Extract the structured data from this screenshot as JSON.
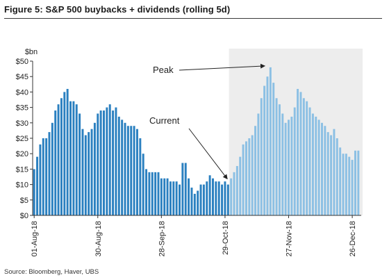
{
  "title": "Figure 5: S&P 500 buybacks + dividends (rolling 5d)",
  "source": "Source:  Bloomberg, Haver, UBS",
  "chart_data": {
    "type": "bar",
    "ylabel": "$bn",
    "ylim": [
      0,
      50
    ],
    "yticks": [
      "$0",
      "$5",
      "$10",
      "$15",
      "$20",
      "$25",
      "$30",
      "$35",
      "$40",
      "$45",
      "$50"
    ],
    "xtick_labels": [
      "01-Aug-18",
      "30-Aug-18",
      "28-Sep-18",
      "29-Oct-18",
      "27-Nov-18",
      "26-Dec-18"
    ],
    "xtick_index": [
      0,
      21,
      42,
      63,
      84,
      105
    ],
    "grid": false,
    "colors": {
      "actual": "#2b80c0",
      "projected": "#8cc0e4",
      "shade": "#ededed",
      "axis": "#333333"
    },
    "projection_start_index": 65,
    "series": [
      {
        "values": [
          15,
          19,
          23,
          25,
          25,
          27,
          30,
          34,
          36,
          38,
          40,
          41,
          37,
          37,
          36,
          33,
          28,
          26,
          27,
          28,
          30,
          33,
          34,
          34,
          35,
          36,
          34,
          35,
          32,
          31,
          30,
          29,
          29,
          29,
          28,
          25,
          20,
          15,
          14,
          14,
          14,
          14,
          12,
          12,
          12,
          11,
          11,
          11,
          10,
          17,
          17,
          12,
          9,
          7,
          8,
          10,
          10,
          11,
          13,
          12,
          11,
          11,
          10,
          11,
          10,
          12,
          14,
          16,
          19,
          23,
          24,
          25,
          26,
          29,
          33,
          38,
          42,
          45,
          48,
          43,
          38,
          36,
          33,
          30,
          31,
          32,
          35,
          41,
          40,
          38,
          37,
          35,
          33,
          32,
          31,
          30,
          29,
          27,
          26,
          28,
          25,
          22,
          20,
          20,
          19,
          18,
          21,
          21
        ]
      }
    ],
    "annotations": [
      {
        "text": "Peak",
        "target_index": 78
      },
      {
        "text": "Current",
        "target_index": 64
      }
    ]
  }
}
